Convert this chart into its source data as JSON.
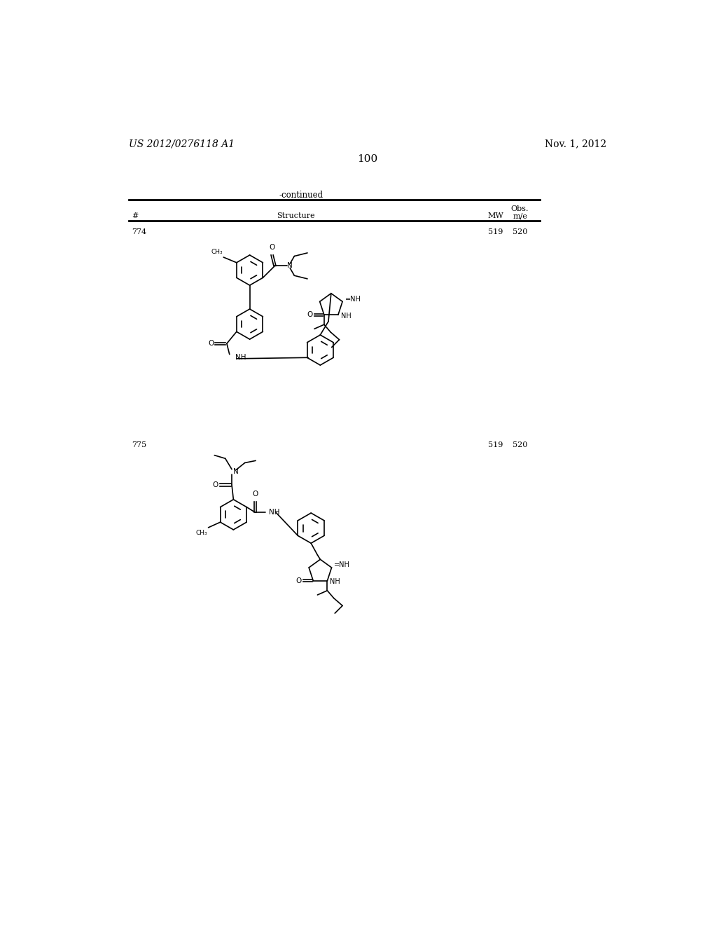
{
  "header_left": "US 2012/0276118 A1",
  "header_right": "Nov. 1, 2012",
  "page_number": "100",
  "continued_text": "-continued",
  "bg_color": "#ffffff",
  "text_color": "#000000",
  "entry_774_id": "774",
  "entry_774_mw": "519",
  "entry_774_obs": "520",
  "entry_775_id": "775",
  "entry_775_mw": "519",
  "entry_775_obs": "520",
  "col_hash": "#",
  "col_structure": "Structure",
  "col_mw": "MW",
  "col_obs1": "Obs.",
  "col_obs2": "m/e"
}
